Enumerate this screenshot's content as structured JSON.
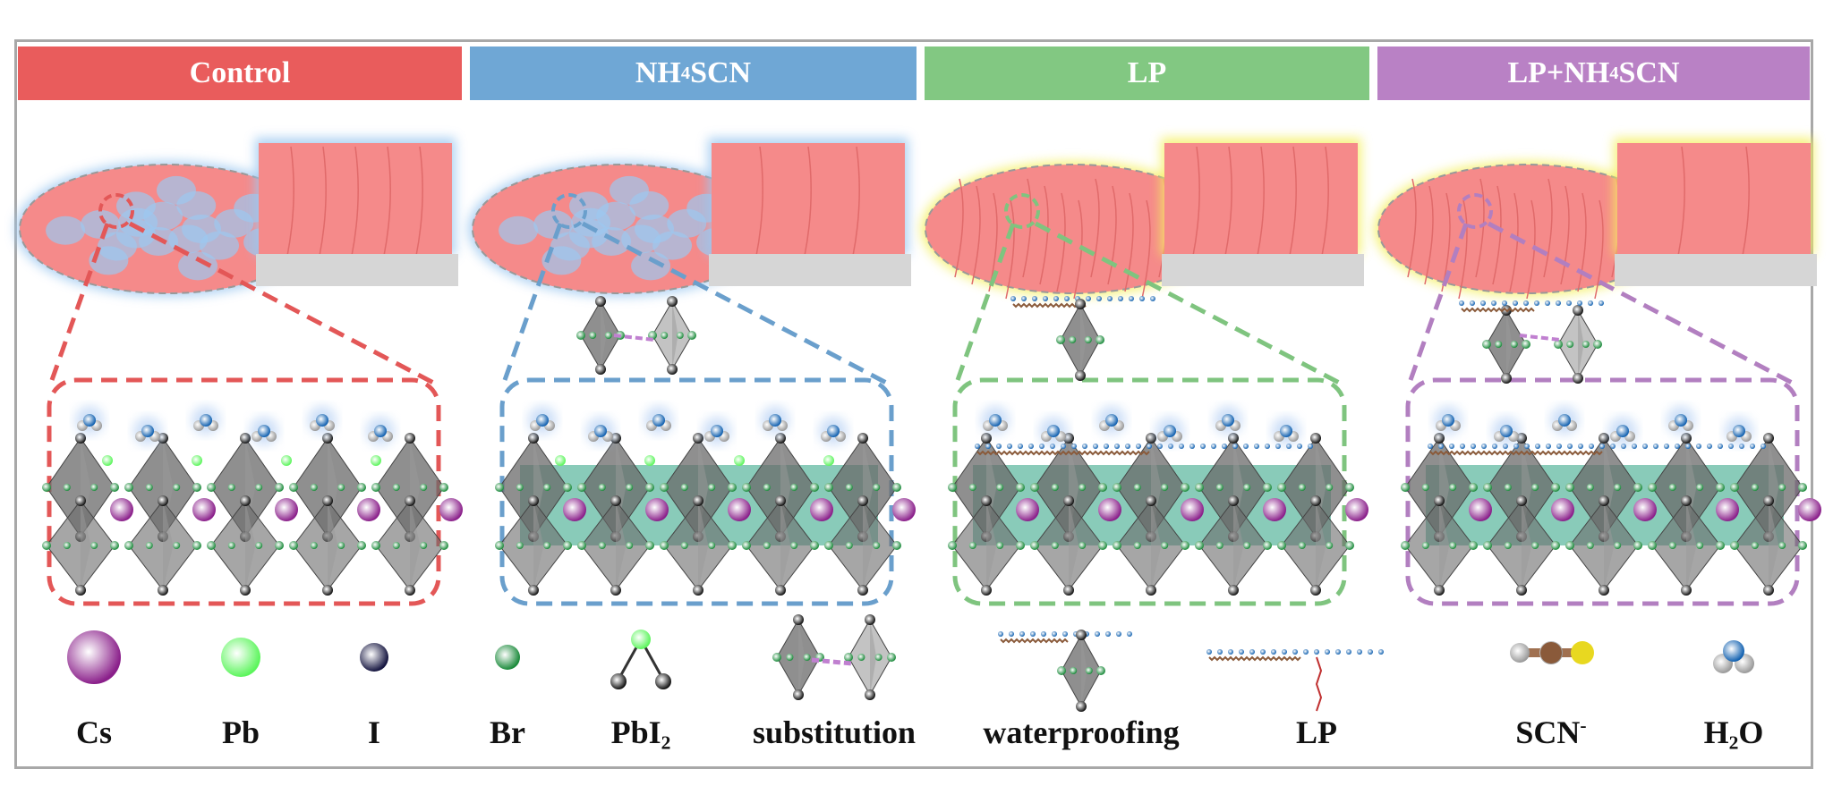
{
  "panels": [
    {
      "pre": "Control",
      "sub": "",
      "post": "",
      "color": "#e95c5c",
      "glow": "#9cc8f0",
      "line": "#e35757"
    },
    {
      "pre": "NH",
      "sub": "4",
      "post": "SCN",
      "color": "#6fa7d5",
      "glow": "#9cc8f0",
      "line": "#6a9fcc"
    },
    {
      "pre": "LP",
      "sub": "",
      "post": "",
      "color": "#82c882",
      "glow": "#f4f060",
      "line": "#7fc47f"
    },
    {
      "pre": "LP+NH",
      "sub": "4",
      "post": "SCN",
      "color": "#b981c5",
      "glow": "#f4f060",
      "line": "#b27fc0"
    }
  ],
  "legend": [
    {
      "pre": "Cs",
      "sub": "",
      "sup": "",
      "icon": "cs-atom-icon"
    },
    {
      "pre": "Pb",
      "sub": "",
      "sup": "",
      "icon": "pb-atom-icon"
    },
    {
      "pre": "I",
      "sub": "",
      "sup": "",
      "icon": "i-atom-icon"
    },
    {
      "pre": "Br",
      "sub": "",
      "sup": "",
      "icon": "br-atom-icon"
    },
    {
      "pre": "PbI",
      "sub": "2",
      "sup": "",
      "icon": "pbi2-molecule-icon"
    },
    {
      "pre": "substitution",
      "sub": "",
      "sup": "",
      "icon": "substitution-icon"
    },
    {
      "pre": "waterproofing",
      "sub": "",
      "sup": "",
      "icon": "waterproofing-icon"
    },
    {
      "pre": "LP",
      "sub": "",
      "sup": "",
      "icon": "lp-molecule-icon"
    },
    {
      "pre": "SCN",
      "sub": "",
      "sup": "-",
      "icon": "scn-ion-icon"
    },
    {
      "pre": "H",
      "sub": "2",
      "sup": "",
      "post": "O",
      "icon": "water-molecule-icon"
    }
  ],
  "colors": {
    "grain": "#f58a8a",
    "substrate": "#d6d6d6",
    "cs": "#8a1f8a",
    "pb": "#5cf55c",
    "i": "#151540",
    "br": "#1a8a3a",
    "octahedron": "#6a6a6a",
    "teal": "#3aa88a"
  }
}
